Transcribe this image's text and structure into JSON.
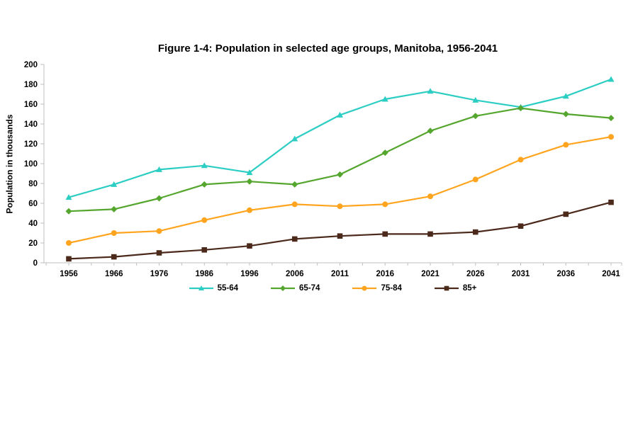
{
  "chart_data": {
    "type": "line",
    "title": "Figure 1-4: Population in selected age groups, Manitoba, 1956-2041",
    "xlabel": "",
    "ylabel": "Population in thousands",
    "ylim": [
      0,
      200
    ],
    "ytick_step": 20,
    "grid": false,
    "legend_position": "bottom",
    "axis_color": "#BFBFBF",
    "text_color": "#000000",
    "categories": [
      "1956",
      "1966",
      "1976",
      "1986",
      "1996",
      "2006",
      "2011",
      "2016",
      "2021",
      "2026",
      "2031",
      "2036",
      "2041"
    ],
    "series": [
      {
        "name": "55-64",
        "color": "#2CCDC3",
        "marker": "triangle",
        "values": [
          66,
          79,
          94,
          98,
          91,
          125,
          149,
          165,
          173,
          164,
          157,
          168,
          185
        ]
      },
      {
        "name": "65-74",
        "color": "#55A62E",
        "marker": "diamond",
        "values": [
          52,
          54,
          65,
          79,
          82,
          79,
          89,
          111,
          133,
          148,
          156,
          150,
          146
        ]
      },
      {
        "name": "75-84",
        "color": "#FFA41E",
        "marker": "circle",
        "values": [
          20,
          30,
          32,
          43,
          53,
          59,
          57,
          59,
          67,
          84,
          104,
          119,
          127
        ]
      },
      {
        "name": "85+",
        "color": "#4B2A1C",
        "marker": "square",
        "values": [
          4,
          6,
          10,
          13,
          17,
          24,
          27,
          29,
          29,
          31,
          37,
          49,
          61
        ]
      }
    ]
  }
}
